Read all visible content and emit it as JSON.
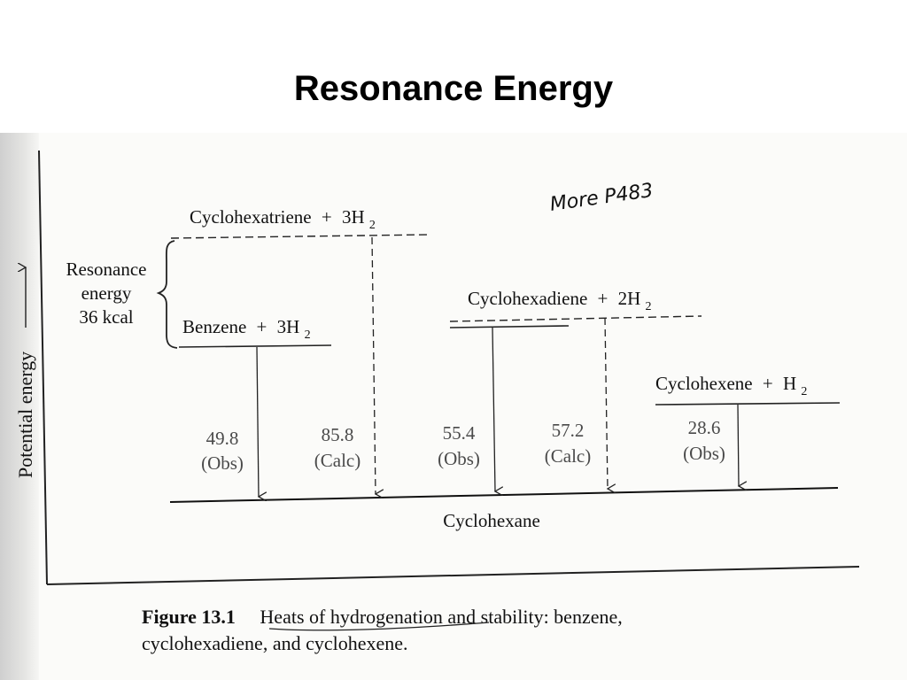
{
  "slide": {
    "title": "Resonance Energy"
  },
  "diagram": {
    "y_axis_label": "Potential energy",
    "handwritten_note": "More P483",
    "levels": {
      "cyclohexatriene": {
        "name": "Cyclohexatriene",
        "h2": "3H"
      },
      "benzene": {
        "name": "Benzene",
        "h2": "3H"
      },
      "cyclohexadiene": {
        "name": "Cyclohexadiene",
        "h2": "2H"
      },
      "cyclohexene": {
        "name": "Cyclohexene",
        "h2": "H"
      },
      "cyclohexane": {
        "name": "Cyclohexane"
      }
    },
    "h2_subscript": "2",
    "plus": "+",
    "resonance": {
      "line1": "Resonance",
      "line2": "energy",
      "line3": "36 kcal"
    },
    "heats": [
      {
        "value": "49.8",
        "tag": "(Obs)"
      },
      {
        "value": "85.8",
        "tag": "(Calc)"
      },
      {
        "value": "55.4",
        "tag": "(Obs)"
      },
      {
        "value": "57.2",
        "tag": "(Calc)"
      },
      {
        "value": "28.6",
        "tag": "(Obs)"
      }
    ]
  },
  "caption": {
    "figure_label": "Figure 13.1",
    "text_part1": "Heats of hydrogenation and stability: benzene,",
    "text_part2": "cyclohexadiene, and cyclohexene."
  }
}
